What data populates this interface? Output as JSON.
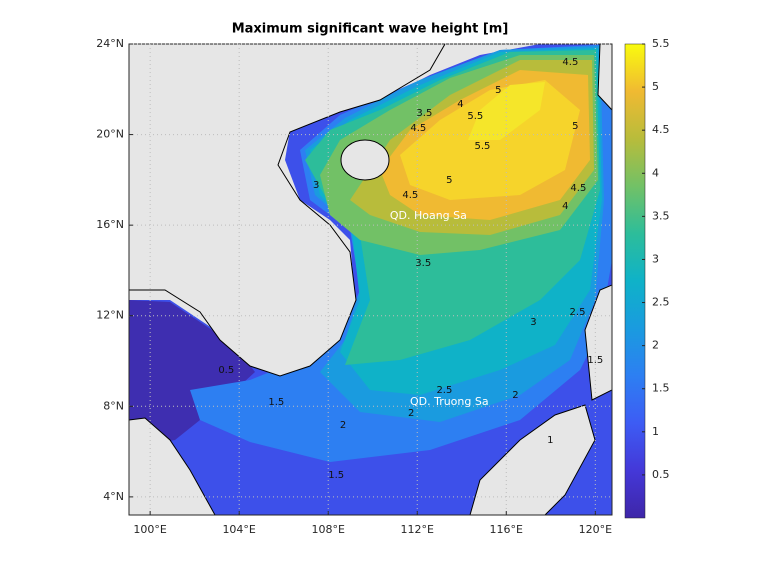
{
  "chart_data": {
    "type": "contour",
    "title": "Maximum significant wave height [m]",
    "xlim": [
      99.05,
      120.75
    ],
    "ylim": [
      3.2,
      24
    ],
    "xticks": [
      {
        "value": 100,
        "label": "100°E"
      },
      {
        "value": 104,
        "label": "104°E"
      },
      {
        "value": 108,
        "label": "108°E"
      },
      {
        "value": 112,
        "label": "112°E"
      },
      {
        "value": 116,
        "label": "116°E"
      },
      {
        "value": 120,
        "label": "120°E"
      }
    ],
    "yticks": [
      {
        "value": 4,
        "label": "4°N"
      },
      {
        "value": 8,
        "label": "8°N"
      },
      {
        "value": 12,
        "label": "12°N"
      },
      {
        "value": 16,
        "label": "16°N"
      },
      {
        "value": 20,
        "label": "20°N"
      },
      {
        "value": 24,
        "label": "24°N"
      }
    ],
    "grid": true,
    "colorbar": {
      "lim": [
        0,
        5.5
      ],
      "ticks": [
        0.5,
        1,
        1.5,
        2,
        2.5,
        3,
        3.5,
        4,
        4.5,
        5,
        5.5
      ]
    },
    "contour_labels": [
      {
        "value": 5,
        "lon": 115.64,
        "lat": 21.97
      },
      {
        "value": 5,
        "lon": 113.44,
        "lat": 18.0
      },
      {
        "value": 5.5,
        "lon": 114.61,
        "lat": 20.82
      },
      {
        "value": 5.5,
        "lon": 114.93,
        "lat": 19.5
      },
      {
        "value": 4.5,
        "lon": 112.05,
        "lat": 20.29
      },
      {
        "value": 4,
        "lon": 113.94,
        "lat": 21.35
      },
      {
        "value": 4.5,
        "lon": 111.69,
        "lat": 17.33
      },
      {
        "value": 4,
        "lon": 118.65,
        "lat": 16.85
      },
      {
        "value": 4.5,
        "lon": 119.24,
        "lat": 17.64
      },
      {
        "value": 5,
        "lon": 119.1,
        "lat": 20.38
      },
      {
        "value": 4.5,
        "lon": 118.88,
        "lat": 23.21
      },
      {
        "value": 3.5,
        "lon": 112.32,
        "lat": 20.95
      },
      {
        "value": 3,
        "lon": 107.46,
        "lat": 17.77
      },
      {
        "value": 3.5,
        "lon": 112.27,
        "lat": 14.33
      },
      {
        "value": 3,
        "lon": 117.22,
        "lat": 11.73
      },
      {
        "value": 2.5,
        "lon": 119.2,
        "lat": 12.17
      },
      {
        "value": 2.5,
        "lon": 113.22,
        "lat": 8.72
      },
      {
        "value": 2,
        "lon": 116.41,
        "lat": 8.5
      },
      {
        "value": 2,
        "lon": 111.73,
        "lat": 7.71
      },
      {
        "value": 2,
        "lon": 108.67,
        "lat": 7.18
      },
      {
        "value": 1.5,
        "lon": 105.67,
        "lat": 8.19
      },
      {
        "value": 1.5,
        "lon": 108.36,
        "lat": 4.97
      },
      {
        "value": 1.5,
        "lon": 120.0,
        "lat": 10.05
      },
      {
        "value": 1,
        "lon": 117.98,
        "lat": 6.52
      },
      {
        "value": 0.5,
        "lon": 103.42,
        "lat": 9.61
      }
    ],
    "place_labels": [
      {
        "label": "QD. Hoang Sa",
        "lon": 112.5,
        "lat": 16.4
      },
      {
        "label": "QD. Truong Sa",
        "lon": 113.44,
        "lat": 8.19
      }
    ]
  }
}
